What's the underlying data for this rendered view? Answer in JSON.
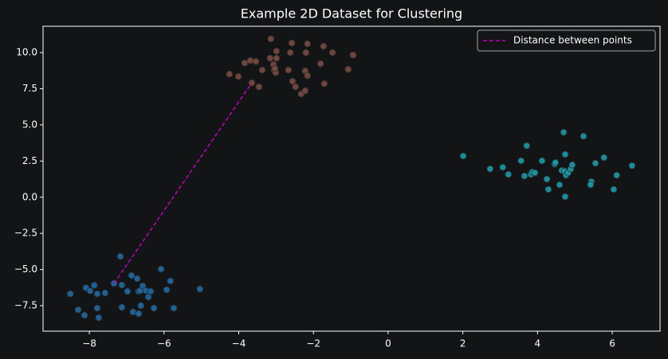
{
  "chart_data": {
    "type": "scatter",
    "title": "Example 2D Dataset for Clustering",
    "xlim": [
      -9.24,
      7.28
    ],
    "ylim": [
      -9.26,
      11.82
    ],
    "xticks": [
      {
        "value": -8,
        "label": "−8"
      },
      {
        "value": -6,
        "label": "−6"
      },
      {
        "value": -4,
        "label": "−4"
      },
      {
        "value": -2,
        "label": "−2"
      },
      0,
      2,
      4,
      6
    ],
    "yticks": [
      {
        "value": 10,
        "label": "10.0"
      },
      7.5,
      {
        "value": 5,
        "label": "5.0"
      },
      2.5,
      {
        "value": 0,
        "label": "0.0"
      },
      {
        "value": -2.5,
        "label": "−2.5"
      },
      {
        "value": -5,
        "label": "−5.0"
      },
      {
        "value": -7.5,
        "label": "−7.5"
      }
    ],
    "legend": "upper right",
    "series": [
      {
        "color": "#1f6aa5",
        "x": [
          -8.51,
          -8.3,
          -8.13,
          -8.09,
          -7.98,
          -7.87,
          -7.79,
          -7.79,
          -7.75,
          -7.58,
          -7.34,
          -7.17,
          -7.13,
          -7.13,
          -6.98,
          -6.87,
          -6.83,
          -6.72,
          -6.68,
          -6.68,
          -6.64,
          -6.62,
          -6.57,
          -6.49,
          -6.42,
          -6.36,
          -6.27,
          -6.08,
          -5.93,
          -5.83,
          -5.74,
          -5.04
        ],
        "values": [
          -6.68,
          -7.78,
          -8.16,
          -6.26,
          -6.48,
          -6.09,
          -6.68,
          -7.67,
          -8.33,
          -6.62,
          -5.96,
          -4.09,
          -6.07,
          -7.61,
          -6.51,
          -5.41,
          -7.94,
          -5.63,
          -6.51,
          -8.05,
          -6.46,
          -7.5,
          -6.13,
          -6.46,
          -6.9,
          -6.51,
          -7.67,
          -4.97,
          -6.4,
          -5.79,
          -7.67,
          -6.35
        ]
      },
      {
        "color": "#7a4a40",
        "x": [
          -4.25,
          -4.01,
          -3.84,
          -3.69,
          -3.54,
          -3.46,
          -3.37,
          -3.14,
          -3.16,
          -3.07,
          -3.05,
          -3.01,
          -2.99,
          -2.99,
          -3.03,
          -2.67,
          -2.62,
          -2.58,
          -2.56,
          -2.48,
          -2.33,
          -2.22,
          -2.22,
          -2.2,
          -2.16,
          -2.16,
          -1.81,
          -1.73,
          -1.71,
          -1.49,
          -1.07,
          -0.94,
          -3.65
        ],
        "values": [
          8.51,
          8.35,
          9.28,
          9.45,
          9.39,
          7.63,
          8.79,
          10.95,
          9.61,
          9.17,
          8.79,
          8.62,
          10.1,
          9.61,
          8.9,
          8.79,
          10.0,
          10.66,
          8.02,
          7.63,
          7.14,
          7.36,
          8.73,
          10.0,
          10.61,
          8.4,
          9.23,
          10.44,
          7.85,
          10.0,
          8.84,
          9.83,
          7.91
        ]
      },
      {
        "color": "#1a9bab",
        "x": [
          2.01,
          2.73,
          3.07,
          3.22,
          3.56,
          3.65,
          3.71,
          3.82,
          3.86,
          3.93,
          4.12,
          4.25,
          4.29,
          4.46,
          4.48,
          4.59,
          4.65,
          4.7,
          4.72,
          4.74,
          4.74,
          4.76,
          4.82,
          4.89,
          4.93,
          5.23,
          5.44,
          5.42,
          5.55,
          5.78,
          6.04,
          6.12,
          6.53
        ],
        "values": [
          2.85,
          1.96,
          2.07,
          1.58,
          2.52,
          1.47,
          3.56,
          1.58,
          1.74,
          1.69,
          2.52,
          1.25,
          0.54,
          2.29,
          2.4,
          0.86,
          1.85,
          4.49,
          1.8,
          2.96,
          0.04,
          1.52,
          1.69,
          1.96,
          2.24,
          4.22,
          1.08,
          0.86,
          2.35,
          2.74,
          0.54,
          1.52,
          2.18
        ]
      },
      {
        "type": "line",
        "name": "Distance between points",
        "color": "#c000c0",
        "linestyle": "dashed",
        "x": [
          -7.34,
          -3.65
        ],
        "values": [
          -5.96,
          7.91
        ]
      }
    ]
  }
}
